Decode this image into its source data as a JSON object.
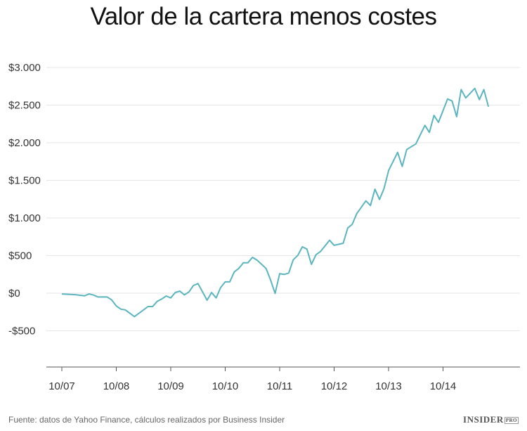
{
  "chart_data": {
    "type": "line",
    "title": "Valor de la cartera menos costes",
    "xlabel": "",
    "ylabel": "",
    "ylim": [
      -1000,
      3000
    ],
    "yticks": [
      -500,
      0,
      500,
      1000,
      1500,
      2000,
      2500,
      3000
    ],
    "ytick_labels": [
      "-$500",
      "$0",
      "$500",
      "$1.000",
      "$1.500",
      "$2.000",
      "$2.500",
      "$3.000"
    ],
    "xtick_labels": [
      "10/07",
      "10/08",
      "10/09",
      "10/10",
      "10/11",
      "10/12",
      "10/13",
      "10/14"
    ],
    "xticks": [
      "2007-10",
      "2008-10",
      "2009-10",
      "2010-10",
      "2011-10",
      "2012-10",
      "2013-10",
      "2014-10"
    ],
    "grid": true,
    "line_color": "#5bb5bf",
    "series": [
      {
        "x": [
          "2007-10",
          "2008-01",
          "2008-03",
          "2008-04",
          "2008-05",
          "2008-06",
          "2008-08",
          "2008-09",
          "2008-10",
          "2008-11",
          "2008-12",
          "2009-02",
          "2009-05",
          "2009-06",
          "2009-07",
          "2009-08",
          "2009-09",
          "2009-10",
          "2009-11",
          "2009-12",
          "2010-01",
          "2010-02",
          "2010-03",
          "2010-04",
          "2010-06",
          "2010-07",
          "2010-08",
          "2010-09",
          "2010-10",
          "2010-11",
          "2010-12",
          "2011-01",
          "2011-02",
          "2011-03",
          "2011-04",
          "2011-05",
          "2011-07",
          "2011-08",
          "2011-09",
          "2011-10",
          "2011-11",
          "2011-12",
          "2012-01",
          "2012-02",
          "2012-03",
          "2012-04",
          "2012-05",
          "2012-06",
          "2012-07",
          "2012-09",
          "2012-10",
          "2012-12",
          "2013-01",
          "2013-02",
          "2013-03",
          "2013-05",
          "2013-06",
          "2013-07",
          "2013-08",
          "2013-09",
          "2013-10",
          "2013-12",
          "2014-01",
          "2014-02",
          "2014-04",
          "2014-06",
          "2014-07",
          "2014-08",
          "2014-09",
          "2014-11",
          "2014-12",
          "2015-01",
          "2015-02",
          "2015-03",
          "2015-05",
          "2015-06",
          "2015-07",
          "2015-08"
        ],
        "values": [
          -10,
          -20,
          -35,
          -10,
          -25,
          -50,
          -50,
          -90,
          -170,
          -212,
          -222,
          -311,
          -178,
          -178,
          -109,
          -78,
          -37,
          -63,
          9,
          28,
          -22,
          16,
          103,
          128,
          -93,
          9,
          -63,
          75,
          150,
          150,
          283,
          330,
          405,
          405,
          477,
          440,
          330,
          175,
          -3,
          259,
          250,
          268,
          446,
          502,
          617,
          586,
          383,
          511,
          554,
          704,
          636,
          664,
          866,
          916,
          1059,
          1227,
          1165,
          1383,
          1246,
          1390,
          1629,
          1872,
          1685,
          1909,
          1984,
          2231,
          2137,
          2364,
          2271,
          2582,
          2554,
          2346,
          2707,
          2595,
          2722,
          2573,
          2707,
          2479
        ]
      }
    ]
  },
  "footer": {
    "source": "Fuente: datos de Yahoo Finance, cálculos realizados por Business Insider",
    "logo": "INSIDER",
    "logo_badge": "PRO"
  }
}
